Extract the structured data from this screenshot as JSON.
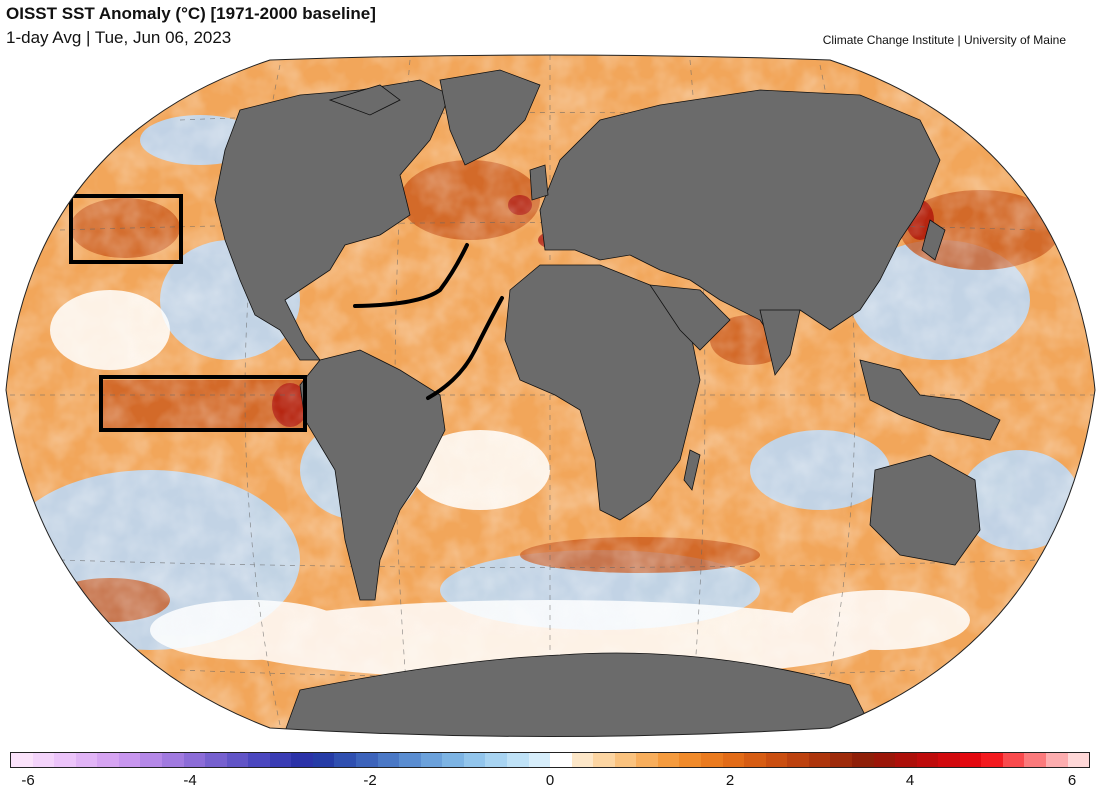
{
  "header": {
    "title": "OISST SST Anomaly (°C) [1971-2000 baseline]",
    "subtitle": "1-day Avg | Tue, Jun 06, 2023",
    "credit": "Climate Change Institute | University of Maine"
  },
  "colorbar": {
    "min": -6,
    "max": 6,
    "tick_labels": [
      "-6",
      "-4",
      "-2",
      "0",
      "2",
      "4",
      "6"
    ],
    "tick_values": [
      -6,
      -4,
      -2,
      0,
      2,
      4,
      6
    ],
    "colors": [
      "#fbe3fb",
      "#f4d4fb",
      "#ecc4fa",
      "#e1b4f6",
      "#d6a4f2",
      "#c896ef",
      "#b588e8",
      "#a17ae0",
      "#8c6cd8",
      "#7660cf",
      "#6154c7",
      "#4b47bf",
      "#3a3cb4",
      "#2b32a8",
      "#253ba6",
      "#2f4fb0",
      "#3c63bb",
      "#4a78c6",
      "#5a8dd1",
      "#6ba1db",
      "#7db4e4",
      "#92c5ec",
      "#a8d4f2",
      "#bfe2f7",
      "#d7eefb",
      "#ffffff",
      "#fde7c8",
      "#fcd5a2",
      "#fac27e",
      "#f8ae5c",
      "#f59b3e",
      "#f08a2a",
      "#ea7a1e",
      "#e26b17",
      "#d65c13",
      "#ca4e10",
      "#bc410e",
      "#ad350c",
      "#9e2a0a",
      "#8f1f08",
      "#9b1608",
      "#ac0f09",
      "#be0b0b",
      "#d1090d",
      "#e3080f",
      "#f31a1f",
      "#f94a4d",
      "#fb7a7c",
      "#fdadaf",
      "#ffd8d8"
    ]
  },
  "map": {
    "ocean_anomaly_colors": {
      "warm": "#f0a050",
      "strong_warm": "#c8400e",
      "neutral": "#ffffff",
      "cool": "#b5d3f3",
      "land": "#6b6b6b"
    },
    "annotations": [
      {
        "type": "box",
        "region": "northeast-pacific"
      },
      {
        "type": "box",
        "region": "equatorial-eastern-pacific"
      },
      {
        "type": "line",
        "region": "north-atlantic-subtropical"
      },
      {
        "type": "line",
        "region": "tropical-atlantic"
      }
    ]
  }
}
